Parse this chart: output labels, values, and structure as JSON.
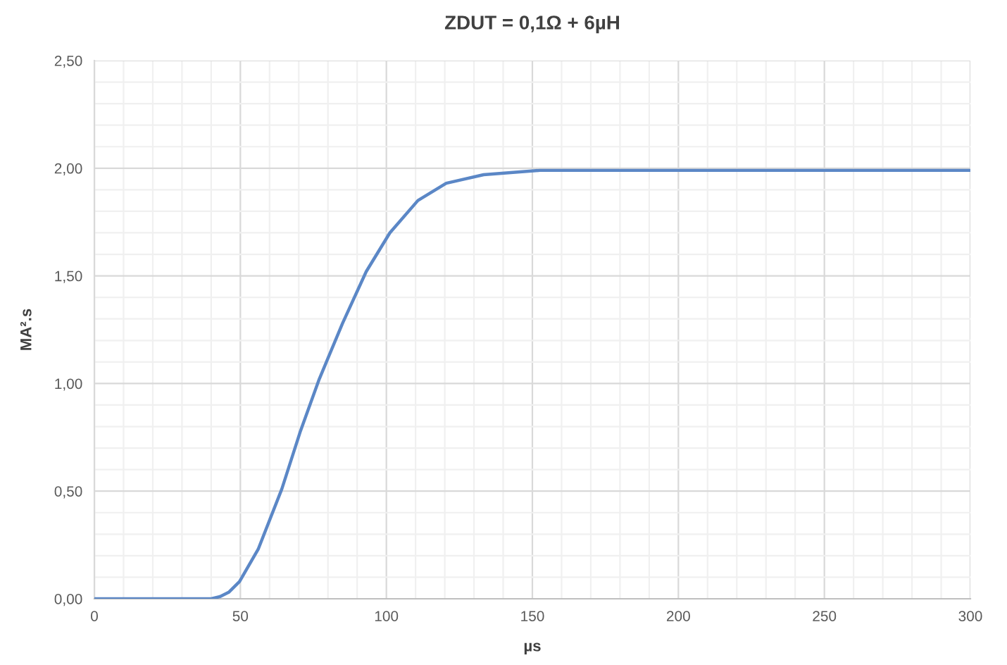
{
  "chart_data": {
    "type": "line",
    "title": "ZDUT = 0,1Ω + 6µH",
    "xlabel": "µs",
    "ylabel": "MA².s",
    "series": [
      {
        "color": "#5b87c6",
        "x": [
          0,
          40,
          43,
          46,
          49.7,
          56.1,
          64.2,
          70.6,
          77.0,
          85.0,
          93.1,
          101.2,
          110.8,
          120.5,
          133.3,
          152.6,
          300
        ],
        "values": [
          0,
          0,
          0.01,
          0.03,
          0.08,
          0.23,
          0.51,
          0.78,
          1.02,
          1.28,
          1.52,
          1.7,
          1.85,
          1.93,
          1.97,
          1.99,
          1.99
        ]
      }
    ],
    "xlim": [
      0,
      300
    ],
    "xticks": [
      0,
      50,
      100,
      150,
      200,
      250,
      300
    ],
    "ylim": [
      0,
      2.5
    ],
    "yticks": [
      {
        "value": 0,
        "label": "0,00"
      },
      {
        "value": 0.5,
        "label": "0,50"
      },
      {
        "value": 1.0,
        "label": "1,00"
      },
      {
        "value": 1.5,
        "label": "1,50"
      },
      {
        "value": 2.0,
        "label": "2,00"
      },
      {
        "value": 2.5,
        "label": "2,50"
      }
    ],
    "grid": true,
    "marker": "none",
    "line_style": "solid",
    "legend": false
  }
}
